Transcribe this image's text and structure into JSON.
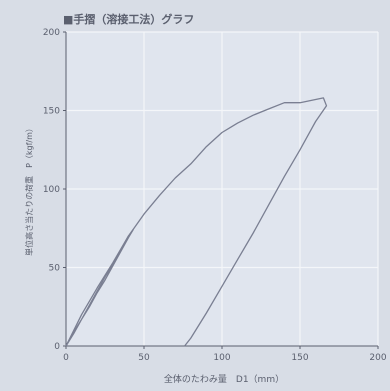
{
  "chart_data": {
    "type": "line",
    "title": "■手摺（溶接工法）グラフ",
    "xlabel": "全体のたわみ量　D1（mm）",
    "ylabel": "単位高さ当たりの荷重　P（kgf/m）",
    "xlim": [
      0,
      200
    ],
    "ylim": [
      0,
      200
    ],
    "x_ticks": [
      "0",
      "50",
      "100",
      "150",
      "200"
    ],
    "y_ticks": [
      "0",
      "50",
      "100",
      "150",
      "200"
    ],
    "grid": true,
    "legend": "none",
    "colors": {
      "background": "#d8dde6",
      "plot_area": "#e0e5ee",
      "grid": "#f4f6f9",
      "axis": "#5a5f6e",
      "series": "#7a7f92",
      "text": "#5a5f6e"
    },
    "series": [
      {
        "values": [
          [
            0,
            0
          ],
          [
            5,
            9
          ],
          [
            10,
            17
          ],
          [
            15,
            26
          ],
          [
            20,
            35
          ],
          [
            25,
            44
          ],
          [
            30,
            52
          ],
          [
            35,
            61
          ],
          [
            40,
            70
          ],
          [
            43,
            74
          ],
          [
            40,
            69
          ],
          [
            35,
            60
          ],
          [
            30,
            51
          ],
          [
            25,
            42
          ],
          [
            20,
            34
          ],
          [
            15,
            25
          ],
          [
            10,
            17
          ],
          [
            5,
            8
          ],
          [
            0,
            0
          ]
        ]
      },
      {
        "values": [
          [
            0,
            0
          ],
          [
            10,
            20
          ],
          [
            20,
            37
          ],
          [
            30,
            53
          ],
          [
            40,
            70
          ],
          [
            50,
            84
          ],
          [
            60,
            96
          ],
          [
            70,
            107
          ],
          [
            80,
            116
          ],
          [
            90,
            127
          ],
          [
            100,
            136
          ],
          [
            110,
            142
          ],
          [
            120,
            147
          ],
          [
            130,
            151
          ],
          [
            140,
            155
          ],
          [
            150,
            155
          ],
          [
            160,
            157
          ],
          [
            165,
            158
          ],
          [
            167,
            153
          ],
          [
            160,
            143
          ],
          [
            150,
            125
          ],
          [
            140,
            108
          ],
          [
            130,
            90
          ],
          [
            120,
            72
          ],
          [
            110,
            55
          ],
          [
            100,
            38
          ],
          [
            90,
            21
          ],
          [
            80,
            5
          ],
          [
            76,
            0
          ]
        ]
      }
    ]
  }
}
